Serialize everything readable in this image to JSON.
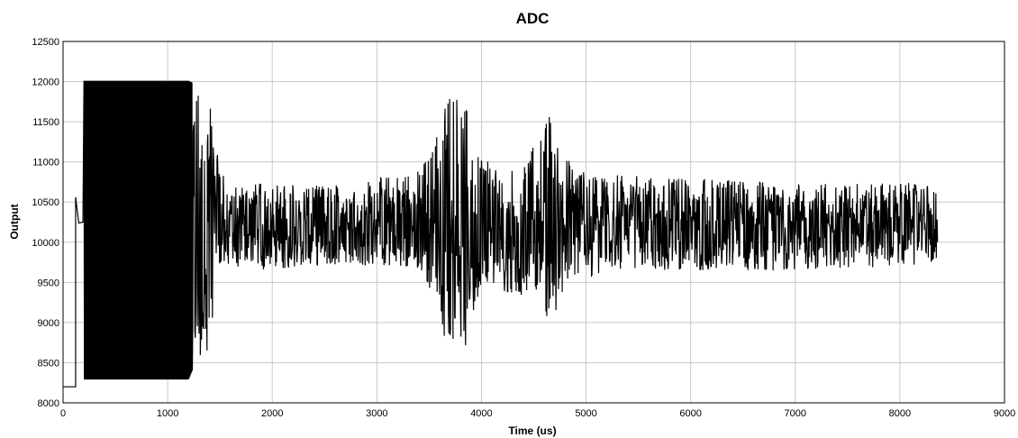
{
  "chart_data": {
    "type": "line",
    "title": "ADC",
    "xlabel": "Time (us)",
    "ylabel": "Output",
    "xlim": [
      0,
      9000
    ],
    "ylim": [
      8000,
      12500
    ],
    "x_ticks": [
      0,
      1000,
      2000,
      3000,
      4000,
      5000,
      6000,
      7000,
      8000,
      9000
    ],
    "y_ticks": [
      8000,
      8500,
      9000,
      9500,
      10000,
      10500,
      11000,
      11500,
      12000,
      12500
    ],
    "grid": true,
    "legend": "none",
    "line_color": "#000000",
    "series": [
      {
        "sample_interval_us": 4,
        "points": [
          [
            0,
            8200
          ],
          [
            120,
            8200
          ],
          [
            130,
            10560
          ],
          [
            150,
            10240
          ],
          [
            190,
            10250
          ],
          [
            1240,
            10200
          ],
          [
            1420,
            10200
          ],
          [
            8360,
            10020
          ]
        ],
        "envelope": [
          [
            200,
            8290,
            12010
          ],
          [
            1200,
            8290,
            12010
          ],
          [
            1300,
            8600,
            11950
          ],
          [
            1380,
            8300,
            12000
          ],
          [
            1450,
            9400,
            11500
          ],
          [
            1550,
            9700,
            10700
          ],
          [
            2000,
            9650,
            10750
          ],
          [
            2500,
            9700,
            10700
          ],
          [
            3000,
            9700,
            10800
          ],
          [
            3400,
            9650,
            10900
          ],
          [
            3550,
            9300,
            11200
          ],
          [
            3650,
            8700,
            11950
          ],
          [
            3750,
            8500,
            11900
          ],
          [
            3850,
            8700,
            11700
          ],
          [
            3950,
            9300,
            11300
          ],
          [
            4100,
            9500,
            10900
          ],
          [
            4300,
            9300,
            10900
          ],
          [
            4550,
            9300,
            11300
          ],
          [
            4650,
            8950,
            11600
          ],
          [
            4750,
            9200,
            11200
          ],
          [
            4900,
            9500,
            10900
          ],
          [
            5200,
            9650,
            10850
          ],
          [
            6000,
            9650,
            10800
          ],
          [
            7000,
            9650,
            10750
          ],
          [
            8000,
            9700,
            10750
          ],
          [
            8360,
            9750,
            10700
          ]
        ]
      }
    ]
  }
}
